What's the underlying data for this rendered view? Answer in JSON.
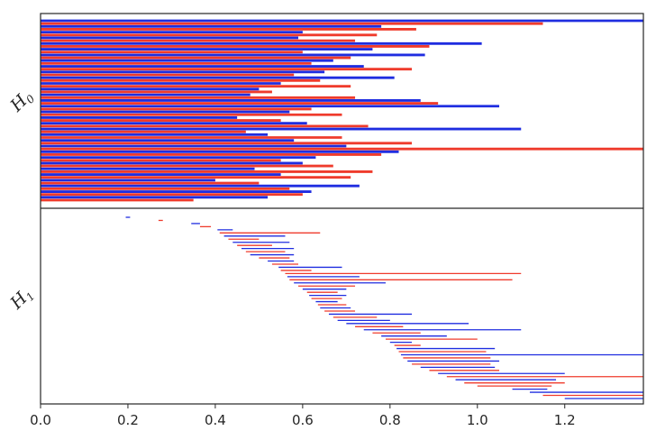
{
  "chart_data": {
    "type": "barcode",
    "x_ticks": [
      "0.0",
      "0.2",
      "0.4",
      "0.6",
      "0.8",
      "1.0",
      "1.2"
    ],
    "xlim": [
      0,
      1.38
    ],
    "colors": {
      "red": "#ef3b2c",
      "blue": "#1f2de0"
    },
    "panels": [
      {
        "name": "H0",
        "ylabel_base": "H",
        "ylabel_sub": "0",
        "bars": [
          {
            "b": 0,
            "d": 1.38,
            "c": "blue"
          },
          {
            "b": 0,
            "d": 1.15,
            "c": "red"
          },
          {
            "b": 0,
            "d": 0.78,
            "c": "blue"
          },
          {
            "b": 0,
            "d": 0.86,
            "c": "red"
          },
          {
            "b": 0,
            "d": 0.6,
            "c": "blue"
          },
          {
            "b": 0,
            "d": 0.77,
            "c": "red"
          },
          {
            "b": 0,
            "d": 0.59,
            "c": "blue"
          },
          {
            "b": 0,
            "d": 0.72,
            "c": "red"
          },
          {
            "b": 0,
            "d": 1.01,
            "c": "blue"
          },
          {
            "b": 0,
            "d": 0.89,
            "c": "red"
          },
          {
            "b": 0,
            "d": 0.76,
            "c": "blue"
          },
          {
            "b": 0,
            "d": 0.6,
            "c": "red"
          },
          {
            "b": 0,
            "d": 0.88,
            "c": "blue"
          },
          {
            "b": 0,
            "d": 0.71,
            "c": "red"
          },
          {
            "b": 0,
            "d": 0.67,
            "c": "blue"
          },
          {
            "b": 0,
            "d": 0.62,
            "c": "red"
          },
          {
            "b": 0,
            "d": 0.74,
            "c": "blue"
          },
          {
            "b": 0,
            "d": 0.85,
            "c": "red"
          },
          {
            "b": 0,
            "d": 0.65,
            "c": "blue"
          },
          {
            "b": 0,
            "d": 0.58,
            "c": "red"
          },
          {
            "b": 0,
            "d": 0.81,
            "c": "blue"
          },
          {
            "b": 0,
            "d": 0.64,
            "c": "red"
          },
          {
            "b": 0,
            "d": 0.55,
            "c": "blue"
          },
          {
            "b": 0,
            "d": 0.71,
            "c": "red"
          },
          {
            "b": 0,
            "d": 0.5,
            "c": "blue"
          },
          {
            "b": 0,
            "d": 0.53,
            "c": "red"
          },
          {
            "b": 0,
            "d": 0.48,
            "c": "blue"
          },
          {
            "b": 0,
            "d": 0.72,
            "c": "red"
          },
          {
            "b": 0,
            "d": 0.87,
            "c": "blue"
          },
          {
            "b": 0,
            "d": 0.91,
            "c": "red"
          },
          {
            "b": 0,
            "d": 1.05,
            "c": "blue"
          },
          {
            "b": 0,
            "d": 0.62,
            "c": "red"
          },
          {
            "b": 0,
            "d": 0.57,
            "c": "blue"
          },
          {
            "b": 0,
            "d": 0.69,
            "c": "red"
          },
          {
            "b": 0,
            "d": 0.45,
            "c": "blue"
          },
          {
            "b": 0,
            "d": 0.55,
            "c": "red"
          },
          {
            "b": 0,
            "d": 0.61,
            "c": "blue"
          },
          {
            "b": 0,
            "d": 0.75,
            "c": "red"
          },
          {
            "b": 0,
            "d": 1.1,
            "c": "blue"
          },
          {
            "b": 0,
            "d": 0.47,
            "c": "red"
          },
          {
            "b": 0,
            "d": 0.52,
            "c": "blue"
          },
          {
            "b": 0,
            "d": 0.69,
            "c": "red"
          },
          {
            "b": 0,
            "d": 0.58,
            "c": "blue"
          },
          {
            "b": 0,
            "d": 0.85,
            "c": "red"
          },
          {
            "b": 0,
            "d": 0.7,
            "c": "blue"
          },
          {
            "b": 0,
            "d": 1.38,
            "c": "red"
          },
          {
            "b": 0,
            "d": 0.82,
            "c": "blue"
          },
          {
            "b": 0,
            "d": 0.78,
            "c": "red"
          },
          {
            "b": 0,
            "d": 0.63,
            "c": "blue"
          },
          {
            "b": 0,
            "d": 0.55,
            "c": "red"
          },
          {
            "b": 0,
            "d": 0.6,
            "c": "blue"
          },
          {
            "b": 0,
            "d": 0.67,
            "c": "red"
          },
          {
            "b": 0,
            "d": 0.49,
            "c": "blue"
          },
          {
            "b": 0,
            "d": 0.76,
            "c": "red"
          },
          {
            "b": 0,
            "d": 0.55,
            "c": "blue"
          },
          {
            "b": 0,
            "d": 0.71,
            "c": "red"
          },
          {
            "b": 0,
            "d": 0.4,
            "c": "blue"
          },
          {
            "b": 0,
            "d": 0.5,
            "c": "red"
          },
          {
            "b": 0,
            "d": 0.73,
            "c": "blue"
          },
          {
            "b": 0,
            "d": 0.57,
            "c": "red"
          },
          {
            "b": 0,
            "d": 0.62,
            "c": "blue"
          },
          {
            "b": 0,
            "d": 0.6,
            "c": "red"
          },
          {
            "b": 0,
            "d": 0.52,
            "c": "blue"
          },
          {
            "b": 0,
            "d": 0.35,
            "c": "red"
          }
        ]
      },
      {
        "name": "H1",
        "ylabel_base": "H",
        "ylabel_sub": "1",
        "bars": [
          {
            "b": 0.195,
            "d": 0.205,
            "c": "blue"
          },
          {
            "b": 0.27,
            "d": 0.28,
            "c": "red"
          },
          {
            "b": 0.345,
            "d": 0.365,
            "c": "blue"
          },
          {
            "b": 0.365,
            "d": 0.39,
            "c": "red"
          },
          {
            "b": 0.405,
            "d": 0.44,
            "c": "blue"
          },
          {
            "b": 0.41,
            "d": 0.64,
            "c": "red"
          },
          {
            "b": 0.42,
            "d": 0.56,
            "c": "blue"
          },
          {
            "b": 0.43,
            "d": 0.5,
            "c": "red"
          },
          {
            "b": 0.44,
            "d": 0.57,
            "c": "blue"
          },
          {
            "b": 0.45,
            "d": 0.53,
            "c": "red"
          },
          {
            "b": 0.46,
            "d": 0.58,
            "c": "blue"
          },
          {
            "b": 0.47,
            "d": 0.56,
            "c": "red"
          },
          {
            "b": 0.48,
            "d": 0.58,
            "c": "blue"
          },
          {
            "b": 0.5,
            "d": 0.57,
            "c": "red"
          },
          {
            "b": 0.52,
            "d": 0.58,
            "c": "blue"
          },
          {
            "b": 0.53,
            "d": 0.59,
            "c": "red"
          },
          {
            "b": 0.545,
            "d": 0.69,
            "c": "blue"
          },
          {
            "b": 0.55,
            "d": 0.62,
            "c": "red"
          },
          {
            "b": 0.56,
            "d": 1.1,
            "c": "red"
          },
          {
            "b": 0.565,
            "d": 0.73,
            "c": "blue"
          },
          {
            "b": 0.57,
            "d": 1.08,
            "c": "red"
          },
          {
            "b": 0.58,
            "d": 0.79,
            "c": "blue"
          },
          {
            "b": 0.59,
            "d": 0.72,
            "c": "red"
          },
          {
            "b": 0.6,
            "d": 0.7,
            "c": "blue"
          },
          {
            "b": 0.61,
            "d": 0.68,
            "c": "red"
          },
          {
            "b": 0.615,
            "d": 0.7,
            "c": "blue"
          },
          {
            "b": 0.62,
            "d": 0.69,
            "c": "red"
          },
          {
            "b": 0.63,
            "d": 0.68,
            "c": "blue"
          },
          {
            "b": 0.635,
            "d": 0.7,
            "c": "red"
          },
          {
            "b": 0.64,
            "d": 0.71,
            "c": "blue"
          },
          {
            "b": 0.65,
            "d": 0.72,
            "c": "red"
          },
          {
            "b": 0.66,
            "d": 0.85,
            "c": "blue"
          },
          {
            "b": 0.67,
            "d": 0.77,
            "c": "red"
          },
          {
            "b": 0.68,
            "d": 0.8,
            "c": "blue"
          },
          {
            "b": 0.7,
            "d": 0.98,
            "c": "blue"
          },
          {
            "b": 0.72,
            "d": 0.83,
            "c": "red"
          },
          {
            "b": 0.74,
            "d": 1.1,
            "c": "blue"
          },
          {
            "b": 0.76,
            "d": 0.87,
            "c": "red"
          },
          {
            "b": 0.78,
            "d": 0.93,
            "c": "blue"
          },
          {
            "b": 0.79,
            "d": 1.0,
            "c": "red"
          },
          {
            "b": 0.8,
            "d": 0.85,
            "c": "blue"
          },
          {
            "b": 0.81,
            "d": 0.87,
            "c": "red"
          },
          {
            "b": 0.815,
            "d": 1.04,
            "c": "blue"
          },
          {
            "b": 0.82,
            "d": 1.02,
            "c": "red"
          },
          {
            "b": 0.825,
            "d": 1.38,
            "c": "blue"
          },
          {
            "b": 0.83,
            "d": 1.03,
            "c": "red"
          },
          {
            "b": 0.84,
            "d": 1.05,
            "c": "blue"
          },
          {
            "b": 0.85,
            "d": 1.03,
            "c": "red"
          },
          {
            "b": 0.87,
            "d": 1.04,
            "c": "blue"
          },
          {
            "b": 0.89,
            "d": 1.05,
            "c": "red"
          },
          {
            "b": 0.91,
            "d": 1.2,
            "c": "blue"
          },
          {
            "b": 0.93,
            "d": 1.38,
            "c": "red"
          },
          {
            "b": 0.95,
            "d": 1.18,
            "c": "blue"
          },
          {
            "b": 0.97,
            "d": 1.2,
            "c": "red"
          },
          {
            "b": 1.0,
            "d": 1.17,
            "c": "red"
          },
          {
            "b": 1.08,
            "d": 1.16,
            "c": "blue"
          },
          {
            "b": 1.12,
            "d": 1.38,
            "c": "blue"
          },
          {
            "b": 1.15,
            "d": 1.38,
            "c": "red"
          },
          {
            "b": 1.2,
            "d": 1.38,
            "c": "blue"
          }
        ]
      }
    ]
  }
}
